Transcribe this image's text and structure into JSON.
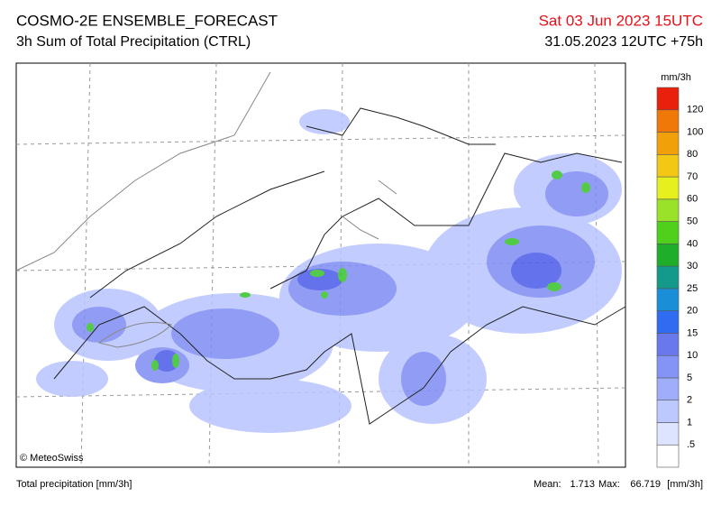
{
  "header": {
    "title": "COSMO-2E ENSEMBLE_FORECAST",
    "subtitle": "3h Sum of Total Precipitation (CTRL)",
    "valid_time": "Sat 03 Jun 2023 15UTC",
    "run": "31.05.2023 12UTC +75h"
  },
  "legend": {
    "unit": "mm/3h",
    "labels": [
      ".5",
      "1",
      "2",
      "5",
      "10",
      "15",
      "20",
      "25",
      "30",
      "40",
      "50",
      "60",
      "70",
      "80",
      "100",
      "120"
    ],
    "colors": [
      "#ffffff",
      "#dce4ff",
      "#bcc8ff",
      "#9eaefa",
      "#8494f6",
      "#6a78ee",
      "#2f6cf2",
      "#1a8fd8",
      "#149a8a",
      "#1fae2a",
      "#4fd01a",
      "#9ae22a",
      "#e6f01e",
      "#f2c814",
      "#f2a00a",
      "#f07808",
      "#e8200c"
    ]
  },
  "footer": {
    "left": "Total precipitation [mm/3h]",
    "mean_label": "Mean:",
    "mean": "1.713",
    "max_label": "Max:",
    "max": "66.719",
    "unit": "[mm/3h]"
  },
  "credit": "© MeteoSwiss"
}
